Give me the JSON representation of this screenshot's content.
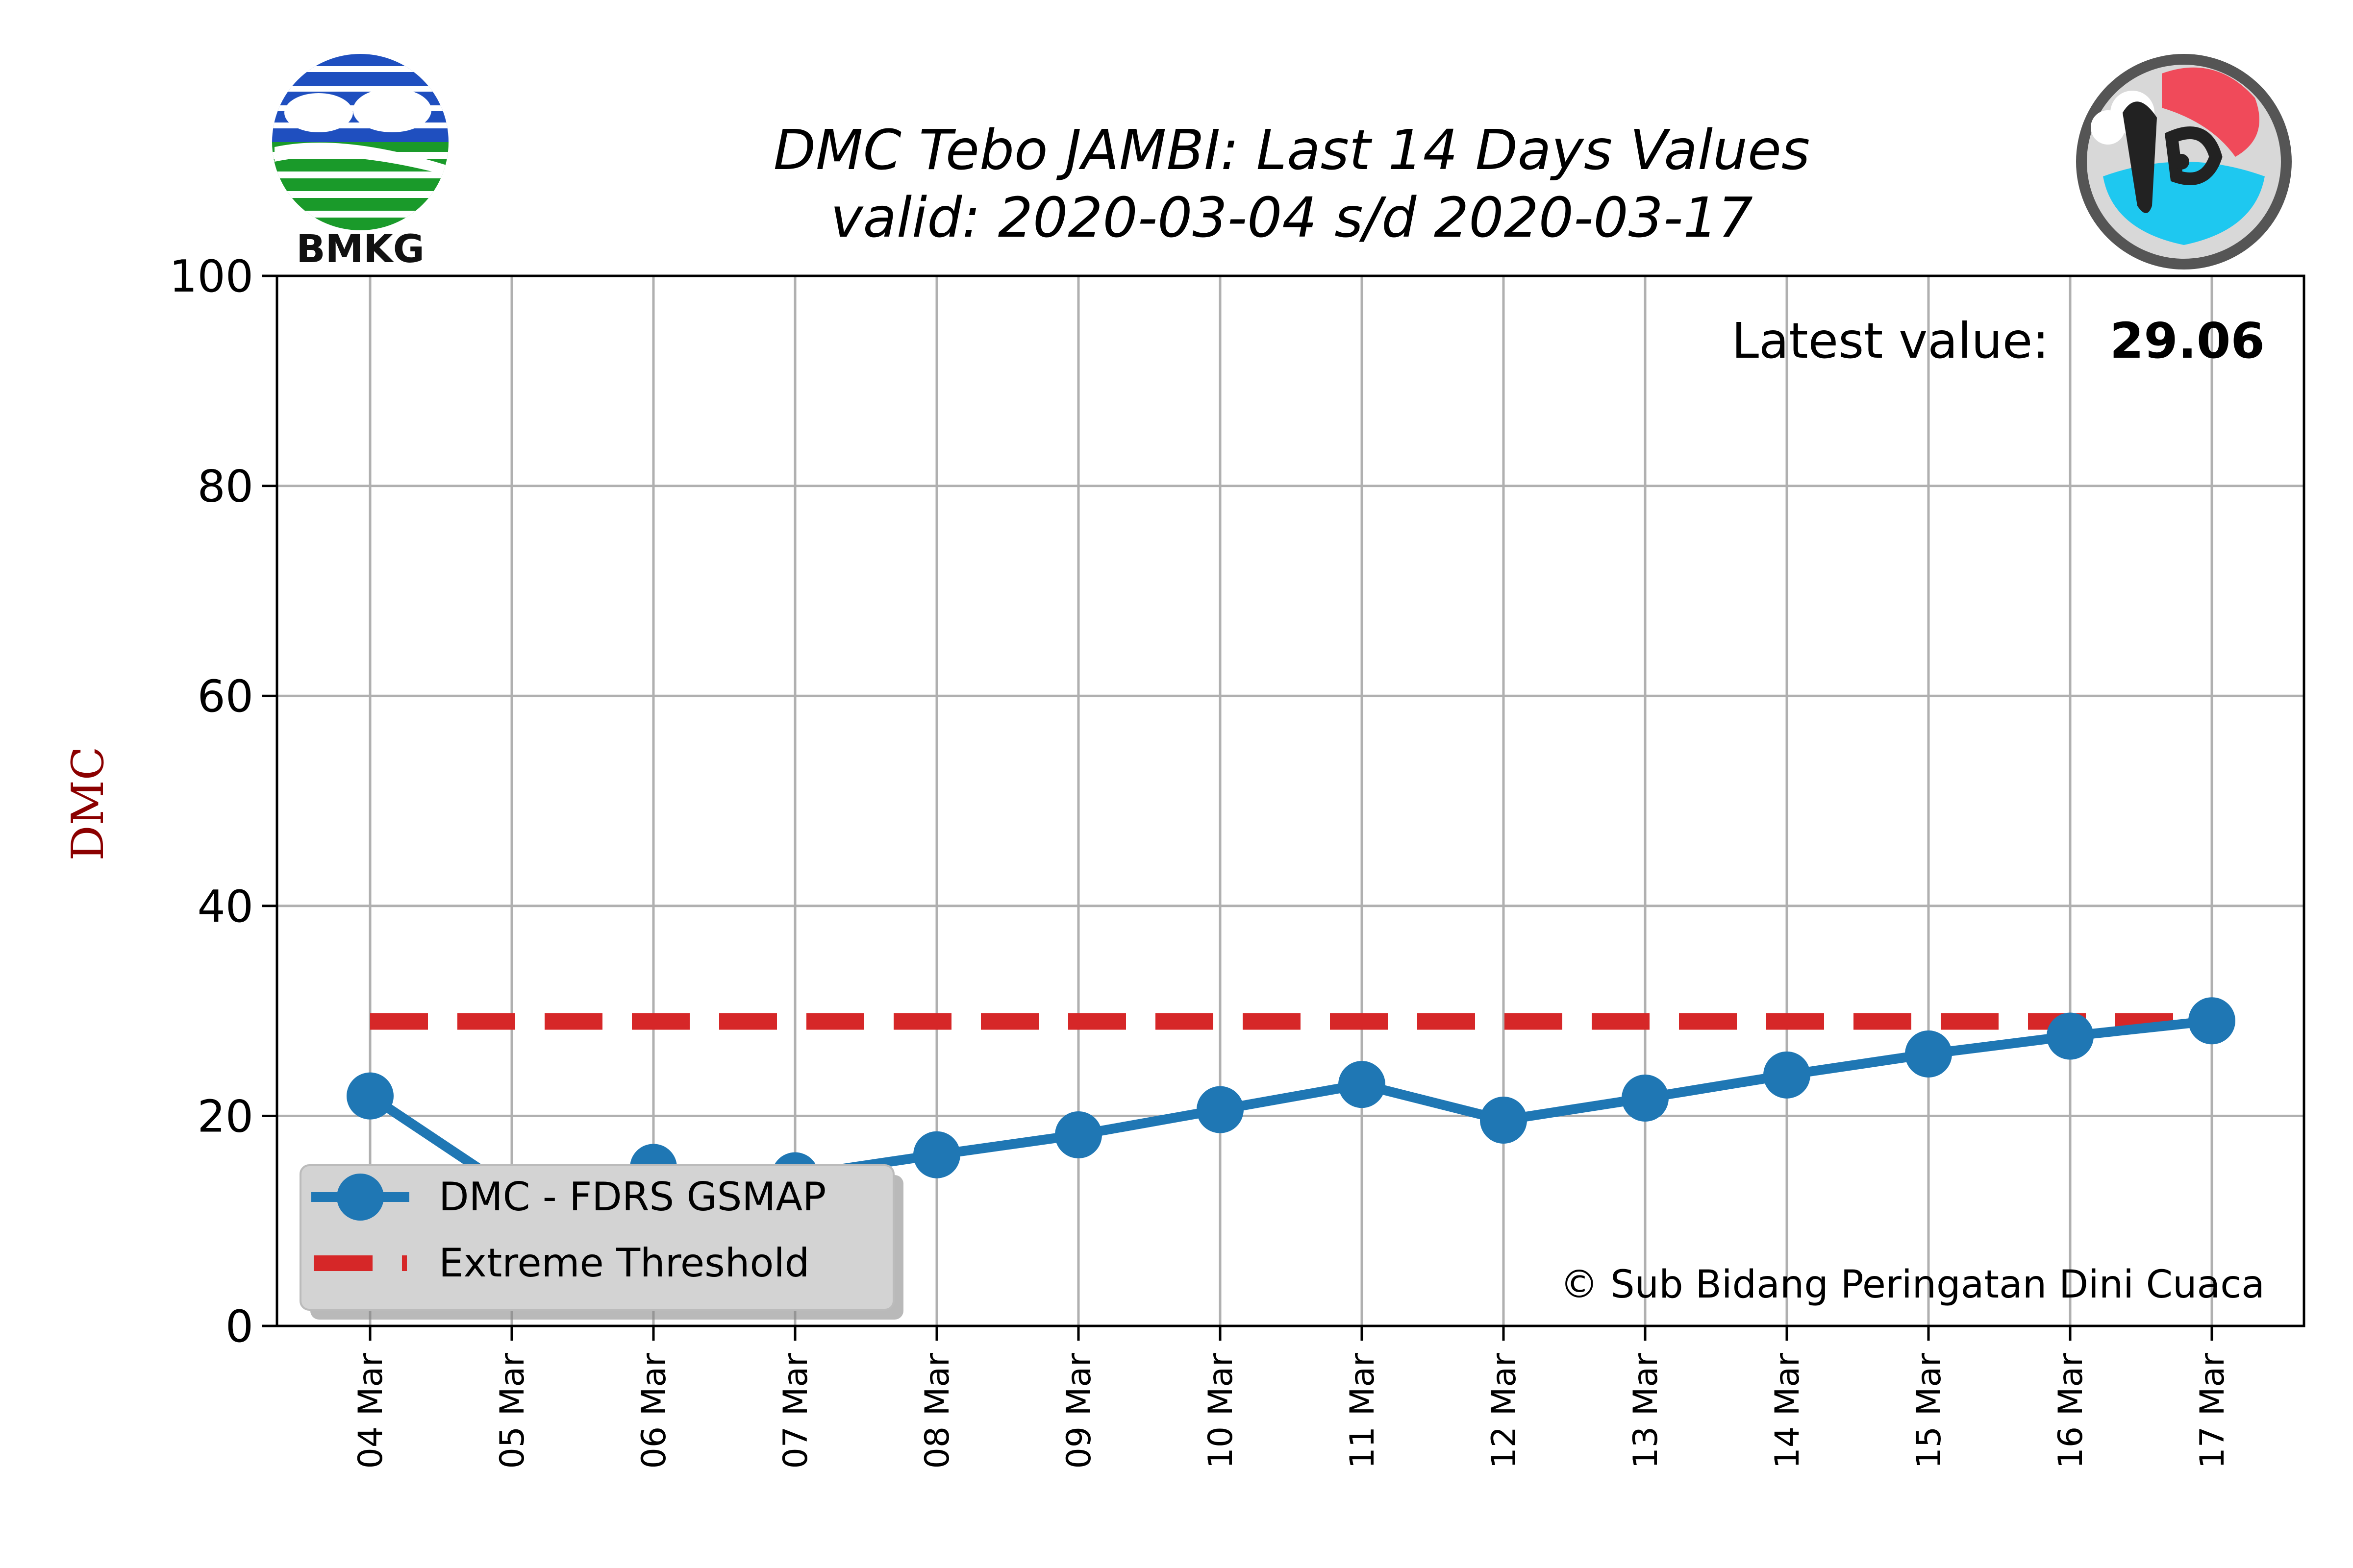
{
  "chart_data": {
    "type": "line",
    "title": "DMC Tebo JAMBI: Last 14 Days Values",
    "subtitle": "valid: 2020-03-04 s/d 2020-03-17",
    "xlabel": "",
    "ylabel": "DMC",
    "ylim": [
      0,
      100
    ],
    "yticks": [
      "0",
      "20",
      "40",
      "60",
      "80",
      "100"
    ],
    "categories": [
      "04 Mar",
      "05 Mar",
      "06 Mar",
      "07 Mar",
      "08 Mar",
      "09 Mar",
      "10 Mar",
      "11 Mar",
      "12 Mar",
      "13 Mar",
      "14 Mar",
      "15 Mar",
      "16 Mar",
      "17 Mar"
    ],
    "grid": true,
    "legend_position": "bottom-left",
    "series": [
      {
        "name": "DMC - FDRS GSMAP",
        "color": "#1f77b4",
        "style": "solid-with-markers",
        "values": [
          21.9,
          12.9,
          15.1,
          14.3,
          16.3,
          18.2,
          20.6,
          23.0,
          19.6,
          21.7,
          23.9,
          25.9,
          27.6,
          29.06
        ]
      },
      {
        "name": "Extreme Threshold",
        "color": "#d62728",
        "style": "dashed",
        "values": [
          29,
          29,
          29,
          29,
          29,
          29,
          29,
          29,
          29,
          29,
          29,
          29,
          29,
          29
        ]
      }
    ],
    "annotations": {
      "latest_label": "Latest value:",
      "latest_value": "29.06",
      "credit": "© Sub Bidang Peringatan Dini Cuaca"
    }
  },
  "logos": {
    "left": "BMKG",
    "right": "PDC - PERINGATAN DINI CUACA"
  }
}
